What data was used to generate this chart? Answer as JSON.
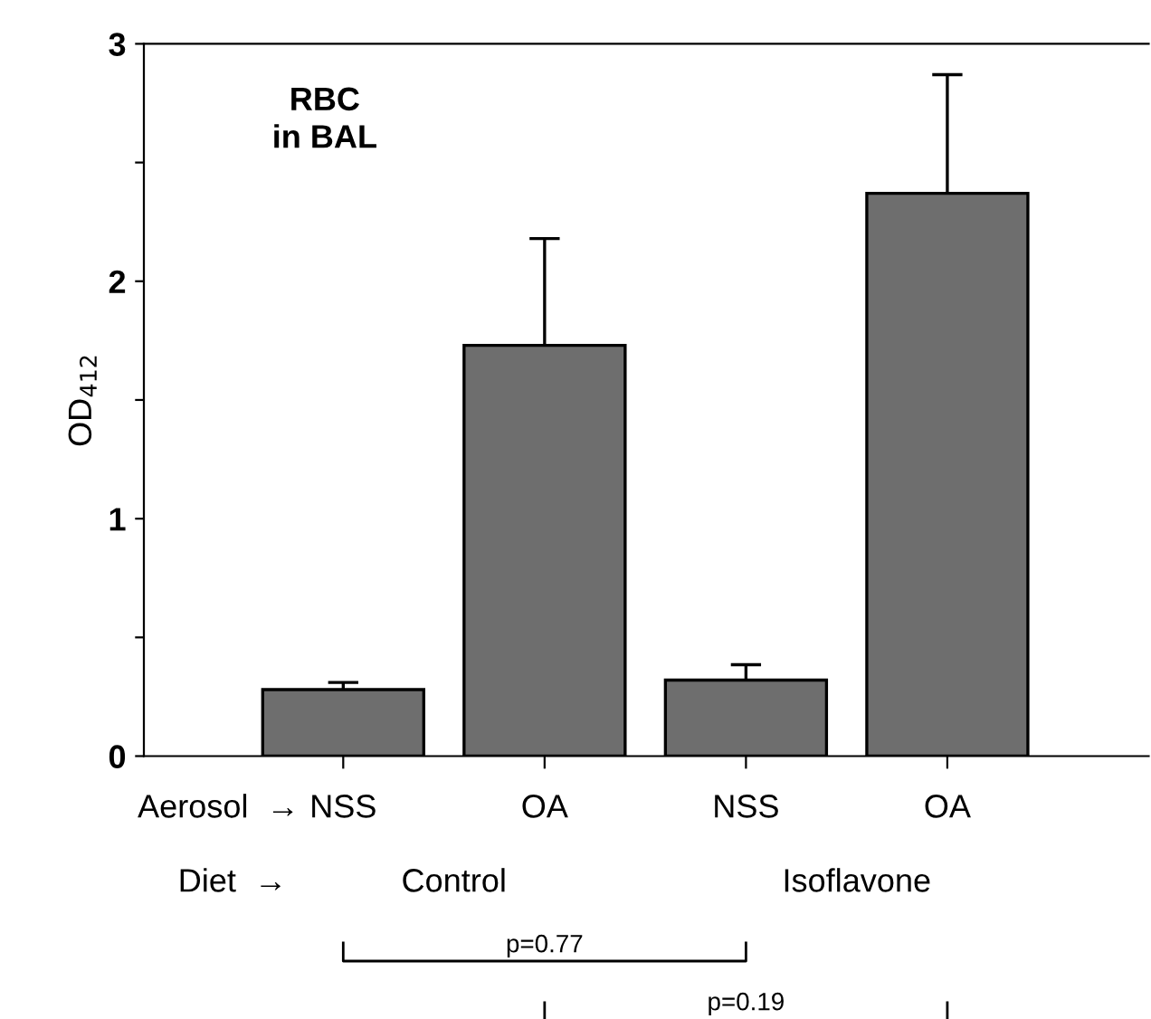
{
  "chart_data": {
    "type": "bar",
    "ylabel": "OD$_{412}$",
    "categories": [
      "NSS",
      "OA",
      "NSS",
      "OA"
    ],
    "values": [
      0.28,
      1.73,
      0.32,
      2.37
    ],
    "errors": [
      [
        0.28,
        0.31
      ],
      [
        1.73,
        2.18
      ],
      [
        0.32,
        0.385
      ],
      [
        2.37,
        2.87
      ]
    ],
    "color": "#6e6e6e",
    "ylim": [
      0,
      3
    ],
    "yticks": [
      0,
      {
        "value": 0.5,
        "label": null
      },
      1,
      {
        "value": 1.5,
        "label": null
      },
      2,
      {
        "value": 2.5,
        "label": null
      },
      3
    ],
    "grid": false,
    "annotations": [
      "RBC\nin BAL",
      "Aerosol  →",
      "Diet  →",
      "Control",
      "Isoflavone",
      "p=0.77",
      "p=0.19"
    ]
  }
}
